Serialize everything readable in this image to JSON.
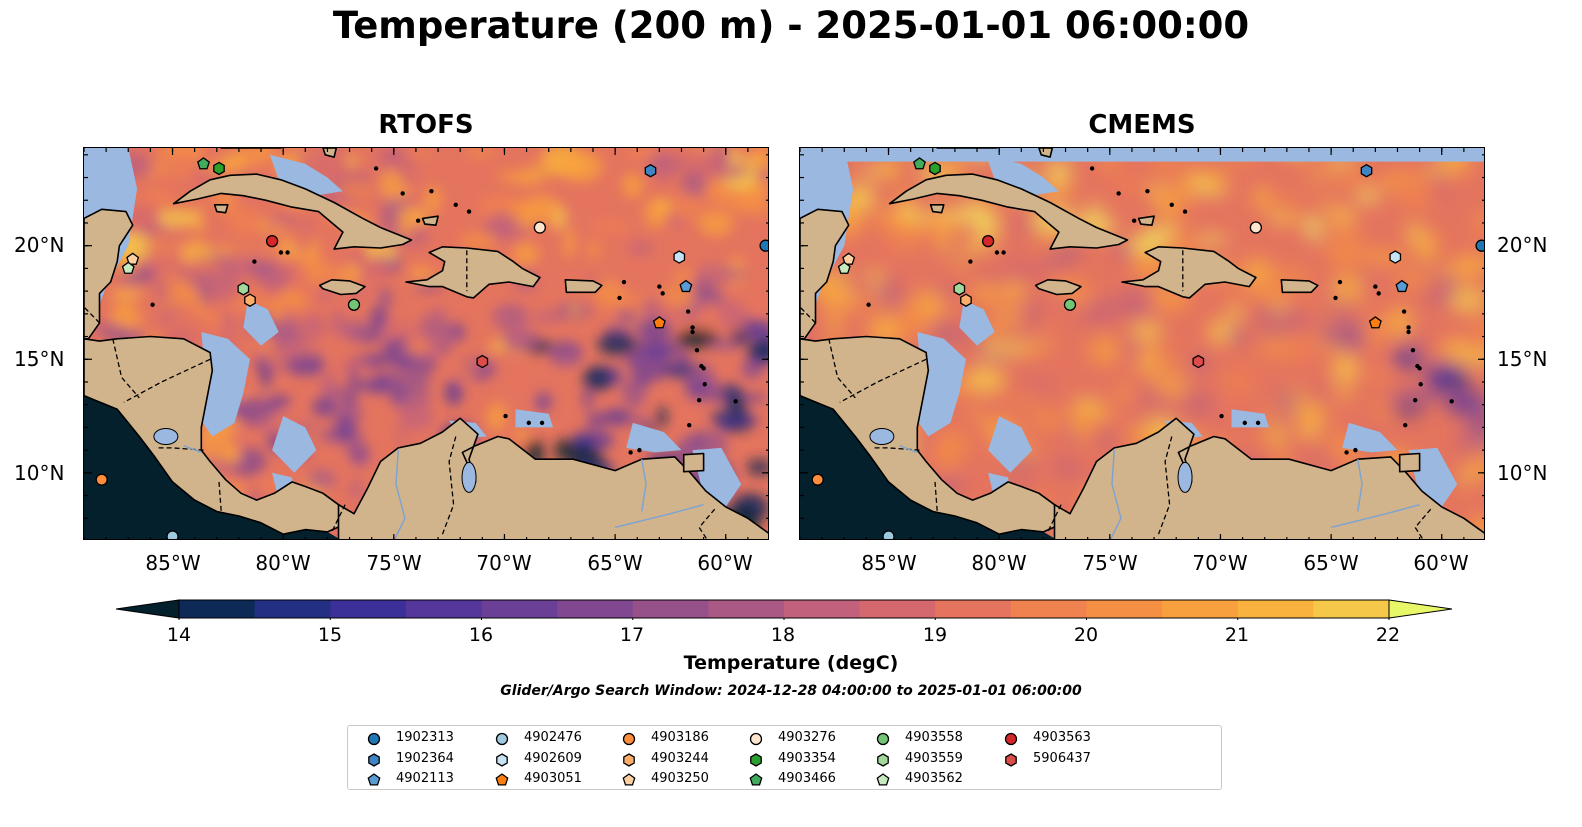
{
  "title": "Temperature (200 m) - 2025-01-01 06:00:00",
  "panels": [
    {
      "title": "RTOFS"
    },
    {
      "title": "CMEMS"
    }
  ],
  "axes": {
    "lat_ticks": [
      "20°N",
      "15°N",
      "10°N"
    ],
    "lon_ticks": [
      "85°W",
      "80°W",
      "75°W",
      "70°W",
      "65°W",
      "60°W"
    ],
    "lon_range": [
      -89,
      -58
    ],
    "lat_range": [
      7,
      24.3
    ]
  },
  "colorbar": {
    "label": "Temperature (degC)",
    "ticks": [
      "14",
      "15",
      "16",
      "17",
      "18",
      "19",
      "20",
      "21",
      "22"
    ],
    "range": [
      14,
      22
    ],
    "extend": "both",
    "colormap": [
      "#04202c",
      "#0d2a57",
      "#232f82",
      "#3b2f98",
      "#55369b",
      "#6c3f97",
      "#814891",
      "#96518b",
      "#aa5985",
      "#c1617b",
      "#d5686e",
      "#e4745e",
      "#ef824f",
      "#f58f43",
      "#f8a03d",
      "#f8b23d",
      "#f5c849",
      "#f2e05c",
      "#e8f768"
    ]
  },
  "colors": {
    "ocean": "#9ab8e0",
    "land": "#d2b48c"
  },
  "search_window": "Glider/Argo Search Window: 2024-12-28 04:00:00 to 2025-01-01 06:00:00",
  "floats": [
    {
      "id": "1902313",
      "marker": "circle",
      "color": "#1f77b4",
      "lon": -58.2,
      "lat": 20.0
    },
    {
      "id": "1902364",
      "marker": "hexagon",
      "color": "#3f84c3",
      "lon": -63.4,
      "lat": 23.3
    },
    {
      "id": "4902113",
      "marker": "pentagon",
      "color": "#5b9bd5",
      "lon": -61.8,
      "lat": 18.2
    },
    {
      "id": "4902476",
      "marker": "circle",
      "color": "#9ecae1",
      "lon": -85.0,
      "lat": 7.2
    },
    {
      "id": "4902609",
      "marker": "hexagon",
      "color": "#c6e2f5",
      "lon": -62.1,
      "lat": 19.5
    },
    {
      "id": "4903051",
      "marker": "pentagon",
      "color": "#ff7f0e",
      "lon": -63.0,
      "lat": 16.6
    },
    {
      "id": "4903186",
      "marker": "circle",
      "color": "#fd8d3c",
      "lon": -88.2,
      "lat": 9.7
    },
    {
      "id": "4903244",
      "marker": "hexagon",
      "color": "#fdae6b",
      "lon": -81.5,
      "lat": 17.6
    },
    {
      "id": "4903250",
      "marker": "pentagon",
      "color": "#fdd0a2",
      "lon": -86.8,
      "lat": 19.4
    },
    {
      "id": "4903276",
      "marker": "circle",
      "color": "#fee6ce",
      "lon": -68.4,
      "lat": 20.8
    },
    {
      "id": "4903354",
      "marker": "hexagon",
      "color": "#2ca02c",
      "lon": -82.9,
      "lat": 23.4
    },
    {
      "id": "4903466",
      "marker": "pentagon",
      "color": "#41ab5d",
      "lon": -83.6,
      "lat": 23.6
    },
    {
      "id": "4903558",
      "marker": "circle",
      "color": "#74c476",
      "lon": -76.8,
      "lat": 17.4
    },
    {
      "id": "4903559",
      "marker": "hexagon",
      "color": "#a1d99b",
      "lon": -81.8,
      "lat": 18.1
    },
    {
      "id": "4903562",
      "marker": "pentagon",
      "color": "#c7e9c0",
      "lon": -87.0,
      "lat": 19.0
    },
    {
      "id": "4903563",
      "marker": "circle",
      "color": "#d62728",
      "lon": -80.5,
      "lat": 20.2
    },
    {
      "id": "5906437",
      "marker": "hexagon",
      "color": "#de4b4b",
      "lon": -71.0,
      "lat": 14.9
    }
  ]
}
